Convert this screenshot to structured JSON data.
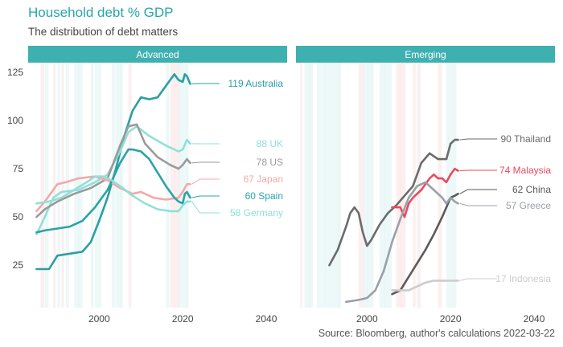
{
  "title": "Household debt % GDP",
  "subtitle": "The distribution of debt matters",
  "caption": "Source: Bloomberg, author's calculations 2022-03-22",
  "chart_data": {
    "type": "line",
    "xlim": [
      1983,
      2045
    ],
    "ylim": [
      3,
      130
    ],
    "x_ticks": [
      2000,
      2020,
      2040
    ],
    "y_ticks": [
      25,
      50,
      75,
      100,
      125
    ],
    "grid": false,
    "legend": "none (series labelled at line ends)",
    "panels": [
      {
        "name": "Advanced",
        "header_color": "#3fb0b0",
        "series": [
          {
            "name": "Australia",
            "end_label": "119 Australia",
            "color": "#2a9fa3",
            "x": [
              1985,
              1988,
              1990,
              1993,
              1996,
              1998,
              2000,
              2002,
              2004,
              2006,
              2008,
              2010,
              2012,
              2014,
              2016,
              2018,
              2019,
              2020,
              2020.5,
              2021,
              2021.8
            ],
            "y": [
              23,
              23,
              30,
              31,
              32,
              37,
              48,
              60,
              75,
              92,
              105,
              112,
              111,
              112,
              118,
              124,
              121,
              120,
              124,
              123,
              119
            ]
          },
          {
            "name": "UK",
            "end_label": "88 UK",
            "color": "#8fe0da",
            "x": [
              1985,
              1987,
              1989,
              1991,
              1995,
              1999,
              2002,
              2005,
              2007,
              2009,
              2012,
              2016,
              2019,
              2020,
              2021,
              2021.8
            ],
            "y": [
              41,
              50,
              60,
              63,
              64,
              68,
              72,
              84,
              94,
              97,
              92,
              87,
              84,
              85,
              90,
              88
            ]
          },
          {
            "name": "US",
            "end_label": "78 US",
            "color": "#9a9a9a",
            "x": [
              1985,
              1987,
              1990,
              1994,
              1998,
              2002,
              2005,
              2007,
              2009,
              2011,
              2014,
              2017,
              2019,
              2020,
              2021,
              2021.8
            ],
            "y": [
              50,
              54,
              58,
              62,
              65,
              70,
              87,
              97,
              98,
              88,
              81,
              77,
              75,
              77,
              80,
              78
            ]
          },
          {
            "name": "Japan",
            "end_label": "67 Japan",
            "color": "#f4a8a8",
            "x": [
              1985,
              1987,
              1990,
              1992,
              1995,
              1999,
              2002,
              2005,
              2008,
              2010,
              2013,
              2016,
              2019,
              2020,
              2021,
              2021.8
            ],
            "y": [
              53,
              58,
              67,
              68,
              70,
              71,
              69,
              65,
              62,
              63,
              60,
              59,
              60,
              63,
              67,
              67
            ]
          },
          {
            "name": "Spain",
            "end_label": "60 Spain",
            "color": "#2aa3a8",
            "x": [
              1985,
              1987,
              1990,
              1993,
              1996,
              1999,
              2002,
              2005,
              2007,
              2008,
              2010,
              2012,
              2014,
              2016,
              2018,
              2019,
              2020,
              2020.5,
              2021,
              2021.8
            ],
            "y": [
              42,
              43,
              44,
              45,
              48,
              55,
              64,
              78,
              85,
              85,
              84,
              80,
              73,
              66,
              60,
              58,
              57,
              62,
              63,
              60
            ]
          },
          {
            "name": "Germany",
            "end_label": "58 Germany",
            "color": "#8fe0da",
            "x": [
              1985,
              1988,
              1991,
              1994,
              1997,
              1999,
              2001,
              2003,
              2005,
              2008,
              2011,
              2014,
              2017,
              2019,
              2020,
              2021,
              2021.8
            ],
            "y": [
              57,
              58,
              60,
              64,
              68,
              71,
              71,
              69,
              66,
              61,
              57,
              54,
              53,
              53,
              56,
              58,
              58
            ]
          }
        ]
      },
      {
        "name": "Emerging",
        "header_color": "#3fb0b0",
        "series": [
          {
            "name": "Thailand",
            "end_label": "90 Thailand",
            "color": "#6b6b6b",
            "x": [
              1991,
              1993,
              1995,
              1996,
              1997,
              1998,
              1999,
              2000,
              2001,
              2003,
              2005,
              2007,
              2009,
              2011,
              2013,
              2015,
              2017,
              2019,
              2020,
              2021,
              2021.8
            ],
            "y": [
              25,
              33,
              45,
              52,
              55,
              52,
              42,
              35,
              38,
              46,
              52,
              56,
              61,
              66,
              78,
              83,
              80,
              80,
              88,
              90,
              90
            ]
          },
          {
            "name": "Malaysia",
            "end_label": "74 Malaysia",
            "color": "#e84a5f",
            "x": [
              2006,
              2007,
              2008,
              2009,
              2010,
              2011,
              2012,
              2013,
              2014,
              2015,
              2016,
              2017,
              2018,
              2019,
              2020,
              2021,
              2021.8
            ],
            "y": [
              55,
              55,
              55,
              50,
              57,
              60,
              62,
              64,
              67,
              70,
              72,
              70,
              70,
              68,
              72,
              75,
              74
            ]
          },
          {
            "name": "China",
            "end_label": "62 China",
            "color": "#5a5a5a",
            "x": [
              2006,
              2008,
              2010,
              2012,
              2014,
              2016,
              2018,
              2019,
              2020,
              2021,
              2021.8
            ],
            "y": [
              10,
              12,
              19,
              26,
              33,
              41,
              50,
              55,
              60,
              61,
              62
            ]
          },
          {
            "name": "Greece",
            "end_label": "57 Greece",
            "color": "#9aa0a8",
            "x": [
              1995,
              1998,
              2000,
              2002,
              2004,
              2006,
              2008,
              2010,
              2012,
              2014,
              2016,
              2018,
              2019,
              2020,
              2021,
              2021.8
            ],
            "y": [
              6,
              7,
              8,
              12,
              22,
              37,
              49,
              60,
              66,
              68,
              64,
              60,
              57,
              60,
              58,
              57
            ]
          },
          {
            "name": "Indonesia",
            "end_label": "17 Indonesia",
            "color": "#cccccc",
            "x": [
              2006,
              2008,
              2010,
              2012,
              2014,
              2016,
              2018,
              2020,
              2021,
              2021.8
            ],
            "y": [
              12,
              12,
              12,
              14,
              16,
              17,
              17,
              17,
              17,
              17
            ]
          }
        ]
      }
    ]
  }
}
